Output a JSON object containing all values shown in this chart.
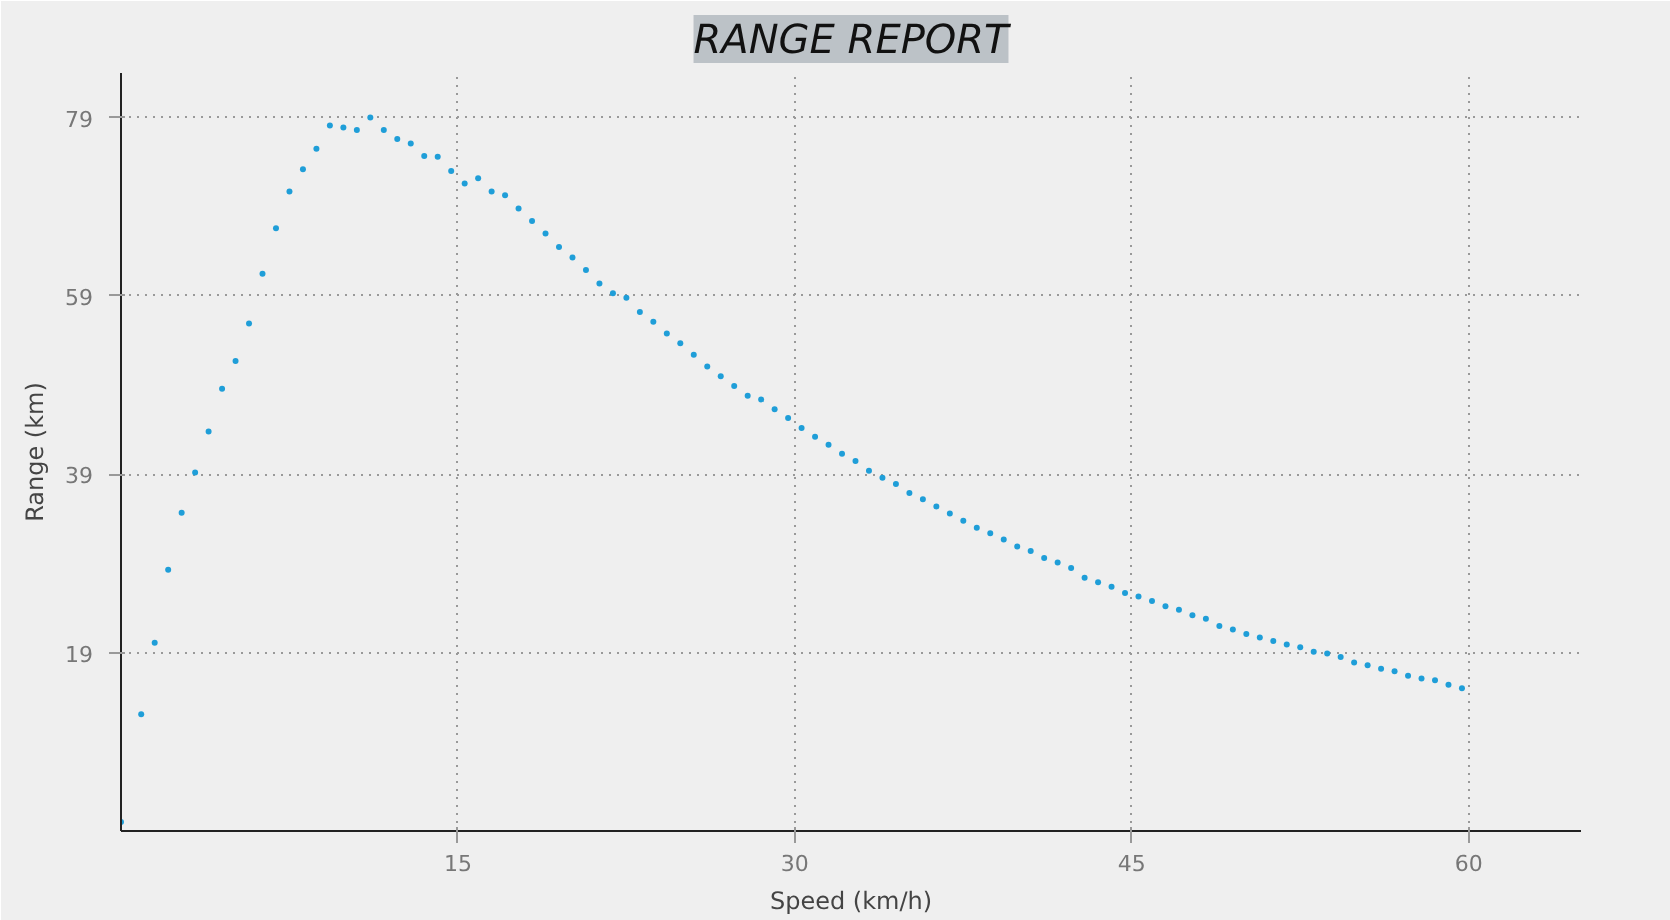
{
  "chart_data": {
    "type": "scatter",
    "title": "RANGE REPORT",
    "xlabel": "Speed (km/h)",
    "ylabel": "Range (km)",
    "x": [
      0,
      0.9,
      1.5,
      2.1,
      2.7,
      3.3,
      3.9,
      4.5,
      5.1,
      5.7,
      6.3,
      6.9,
      7.5,
      8.1,
      8.7,
      9.3,
      9.9,
      10.5,
      11.1,
      11.7,
      12.3,
      12.9,
      13.5,
      14.1,
      14.7,
      15.3,
      15.9,
      16.5,
      17.1,
      17.7,
      18.3,
      18.9,
      19.5,
      20.1,
      20.7,
      21.3,
      21.9,
      22.5,
      23.1,
      23.7,
      24.3,
      24.9,
      25.5,
      26.1,
      26.7,
      27.3,
      27.9,
      28.5,
      29.1,
      29.7,
      30.3,
      30.9,
      31.5,
      32.1,
      32.7,
      33.3,
      33.9,
      34.5,
      35.1,
      35.7,
      36.3,
      36.9,
      37.5,
      38.1,
      38.7,
      39.3,
      39.9,
      40.5,
      41.1,
      41.7,
      42.3,
      42.9,
      43.5,
      44.1,
      44.7,
      45.3,
      45.9,
      46.5,
      47.1,
      47.7,
      48.3,
      48.9,
      49.5,
      50.1,
      50.7,
      51.3,
      51.9,
      52.5,
      53.1,
      53.7,
      54.3,
      54.9,
      55.5,
      56.1,
      56.7,
      57.3,
      57.9,
      58.5,
      59.1,
      59.7
    ],
    "series": [
      {
        "color": "#1f9ed8",
        "values": [
          0,
          12.1,
          20.1,
          28.3,
          34.7,
          39.2,
          43.8,
          48.6,
          51.7,
          55.9,
          61.5,
          66.6,
          70.7,
          73.2,
          75.5,
          78.1,
          77.9,
          77.6,
          79.0,
          77.6,
          76.6,
          76.1,
          74.7,
          74.6,
          73.0,
          71.6,
          72.2,
          70.7,
          70.3,
          68.8,
          67.4,
          66.0,
          64.5,
          63.3,
          61.9,
          60.4,
          59.3,
          58.8,
          57.2,
          56.1,
          54.8,
          53.7,
          52.4,
          51.1,
          50.0,
          48.9,
          47.8,
          47.4,
          46.3,
          45.3,
          44.2,
          43.2,
          42.3,
          41.3,
          40.5,
          39.4,
          38.6,
          37.9,
          36.9,
          36.2,
          35.4,
          34.6,
          33.8,
          33.0,
          32.4,
          31.7,
          30.9,
          30.4,
          29.6,
          29.1,
          28.5,
          27.4,
          26.9,
          26.4,
          25.7,
          25.3,
          24.8,
          24.2,
          23.8,
          23.2,
          22.8,
          22.0,
          21.6,
          21.1,
          20.7,
          20.3,
          19.9,
          19.6,
          19.1,
          18.9,
          18.5,
          17.9,
          17.6,
          17.2,
          16.9,
          16.4,
          16.1,
          15.9,
          15.4,
          15.0
        ]
      }
    ],
    "xlim": [
      0,
      65
    ],
    "ylim": [
      -1,
      84
    ],
    "xticks": [
      15,
      30,
      45,
      60
    ],
    "yticks": [
      19,
      39,
      59,
      79
    ],
    "grid": true,
    "marker": "circle"
  }
}
